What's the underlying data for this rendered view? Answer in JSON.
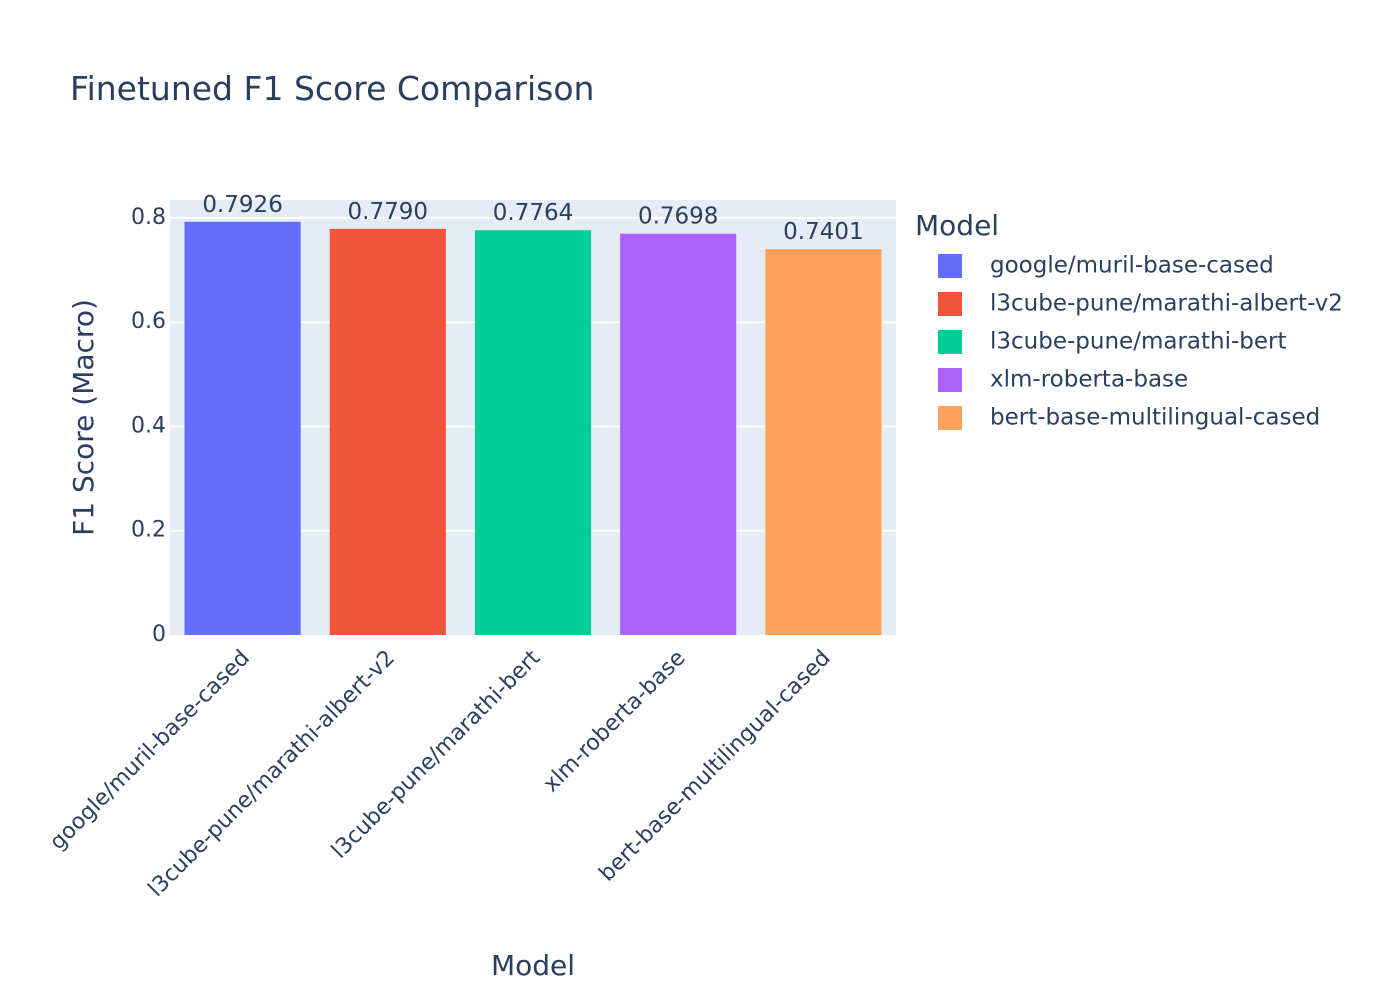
{
  "chart_data": {
    "type": "bar",
    "title": "Finetuned F1 Score Comparison",
    "xlabel": "Model",
    "ylabel": "F1 Score (Macro)",
    "categories": [
      "google/muril-base-cased",
      "l3cube-pune/marathi-albert-v2",
      "l3cube-pune/marathi-bert",
      "xlm-roberta-base",
      "bert-base-multilingual-cased"
    ],
    "values": [
      0.7926,
      0.779,
      0.7764,
      0.7698,
      0.7401
    ],
    "value_labels": [
      "0.7926",
      "0.7790",
      "0.7764",
      "0.7698",
      "0.7401"
    ],
    "colors": [
      "#636efa",
      "#EF553B",
      "#00cc96",
      "#ab63fa",
      "#FFA15A"
    ],
    "ylim": [
      0,
      0.8344
    ],
    "yticks": [
      0,
      0.2,
      0.4,
      0.6,
      0.8
    ],
    "ytick_labels": [
      "0",
      "0.2",
      "0.4",
      "0.6",
      "0.8"
    ],
    "grid": true,
    "plot_background": "#E5ECF6",
    "gridline_color": "#ffffff",
    "legend": {
      "title": "Model",
      "position": "right",
      "entries": [
        "google/muril-base-cased",
        "l3cube-pune/marathi-albert-v2",
        "l3cube-pune/marathi-bert",
        "xlm-roberta-base",
        "bert-base-multilingual-cased"
      ]
    }
  }
}
